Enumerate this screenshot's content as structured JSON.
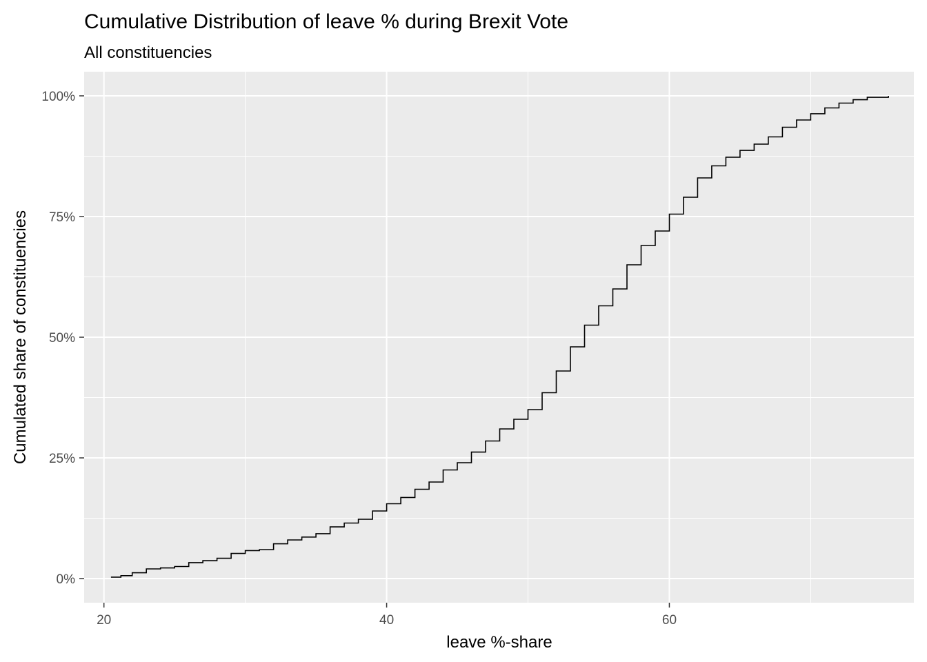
{
  "chart_data": {
    "type": "line",
    "step": true,
    "title": "Cumulative Distribution of leave % during Brexit Vote",
    "subtitle": "All constituencies",
    "xlabel": "leave %-share",
    "ylabel": "Cumulated share of constituencies",
    "xlim": [
      18.6,
      77.3
    ],
    "ylim": [
      -0.05,
      1.05
    ],
    "x_ticks": [
      20,
      40,
      60
    ],
    "x_tick_labels": [
      "20",
      "40",
      "60"
    ],
    "x_minor_ticks": [
      30,
      50,
      70
    ],
    "y_ticks": [
      0,
      0.25,
      0.5,
      0.75,
      1.0
    ],
    "y_tick_labels": [
      "0%",
      "25%",
      "50%",
      "75%",
      "100%"
    ],
    "y_minor_ticks": [
      0.125,
      0.375,
      0.625,
      0.875
    ],
    "grid": true,
    "legend": "none",
    "colors": {
      "panel": "#ebebeb",
      "grid": "#ffffff",
      "line": "#000000"
    },
    "series": [
      {
        "points": [
          [
            20.5,
            0.003
          ],
          [
            21.2,
            0.006
          ],
          [
            22.0,
            0.012
          ],
          [
            23.0,
            0.02
          ],
          [
            24.0,
            0.022
          ],
          [
            25.0,
            0.025
          ],
          [
            26.0,
            0.033
          ],
          [
            27.0,
            0.037
          ],
          [
            28.0,
            0.042
          ],
          [
            29.0,
            0.052
          ],
          [
            30.0,
            0.058
          ],
          [
            31.0,
            0.06
          ],
          [
            32.0,
            0.072
          ],
          [
            33.0,
            0.08
          ],
          [
            34.0,
            0.086
          ],
          [
            35.0,
            0.093
          ],
          [
            36.0,
            0.107
          ],
          [
            37.0,
            0.115
          ],
          [
            38.0,
            0.123
          ],
          [
            39.0,
            0.14
          ],
          [
            40.0,
            0.155
          ],
          [
            41.0,
            0.168
          ],
          [
            42.0,
            0.185
          ],
          [
            43.0,
            0.2
          ],
          [
            44.0,
            0.225
          ],
          [
            45.0,
            0.24
          ],
          [
            46.0,
            0.262
          ],
          [
            47.0,
            0.285
          ],
          [
            48.0,
            0.31
          ],
          [
            49.0,
            0.33
          ],
          [
            50.0,
            0.35
          ],
          [
            51.0,
            0.385
          ],
          [
            52.0,
            0.43
          ],
          [
            53.0,
            0.48
          ],
          [
            54.0,
            0.525
          ],
          [
            55.0,
            0.565
          ],
          [
            56.0,
            0.6
          ],
          [
            57.0,
            0.65
          ],
          [
            58.0,
            0.69
          ],
          [
            59.0,
            0.72
          ],
          [
            60.0,
            0.755
          ],
          [
            61.0,
            0.79
          ],
          [
            62.0,
            0.83
          ],
          [
            63.0,
            0.855
          ],
          [
            64.0,
            0.873
          ],
          [
            65.0,
            0.887
          ],
          [
            66.0,
            0.9
          ],
          [
            67.0,
            0.915
          ],
          [
            68.0,
            0.935
          ],
          [
            69.0,
            0.95
          ],
          [
            70.0,
            0.963
          ],
          [
            71.0,
            0.975
          ],
          [
            72.0,
            0.985
          ],
          [
            73.0,
            0.992
          ],
          [
            74.0,
            0.997
          ],
          [
            75.5,
            1.0
          ]
        ]
      }
    ]
  }
}
